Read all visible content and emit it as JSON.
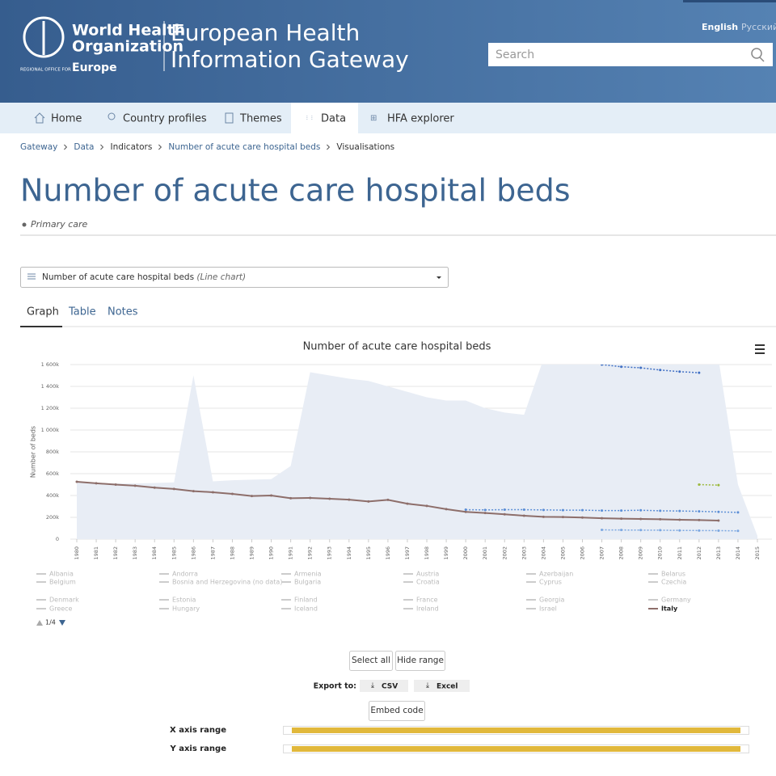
{
  "header": {
    "org_line1": "World Health",
    "org_line2": "Organization",
    "regional": "REGIONAL OFFICE FOR",
    "europe": "Europe",
    "gateway_line1": "European Health",
    "gateway_line2": "Information Gateway",
    "languages": [
      "English",
      "Русский"
    ],
    "search_placeholder": "Search"
  },
  "nav": [
    "Home",
    "Country profiles",
    "Themes",
    "Data",
    "HFA explorer"
  ],
  "breadcrumb": [
    "Gateway",
    "Data",
    "Indicators",
    "Number of acute care hospital beds",
    "Visualisations"
  ],
  "page": {
    "title": "Number of acute care hospital beds",
    "category": "Primary care",
    "selector": "Number of acute care hospital beds",
    "selector_type": "(Line chart)",
    "tabs": [
      "Graph",
      "Table",
      "Notes"
    ]
  },
  "chart_data": {
    "type": "line",
    "title": "Number of acute care hospital beds",
    "y_label": "Number of beds",
    "x": [
      1980,
      1981,
      1982,
      1983,
      1984,
      1985,
      1986,
      1987,
      1988,
      1989,
      1990,
      1991,
      1992,
      1993,
      1994,
      1995,
      1996,
      1997,
      1998,
      1999,
      2000,
      2001,
      2002,
      2003,
      2004,
      2005,
      2006,
      2007,
      2008,
      2009,
      2010,
      2011,
      2012,
      2013,
      2014,
      2015
    ],
    "xlim": [
      1980,
      2015
    ],
    "xticks": [
      1980,
      1981,
      1982,
      1983,
      1984,
      1985,
      1986,
      1987,
      1988,
      1989,
      1990,
      1991,
      1992,
      1993,
      1994,
      1995,
      1996,
      1997,
      1998,
      1999,
      2000,
      2001,
      2002,
      2003,
      2004,
      2005,
      2006,
      2007,
      2008,
      2009,
      2010,
      2011,
      2012,
      2013,
      2014,
      2015
    ],
    "ylim": [
      0,
      1600000
    ],
    "yticks": [
      0,
      {
        "value": 200000,
        "label": "200k"
      },
      {
        "value": 400000,
        "label": "400k"
      },
      {
        "value": 600000,
        "label": "600k"
      },
      {
        "value": 800000,
        "label": "800k"
      },
      {
        "value": 1000000,
        "label": "1 000k"
      },
      {
        "value": 1200000,
        "label": "1 200k"
      },
      {
        "value": 1400000,
        "label": "1 400k"
      },
      {
        "value": 1600000,
        "label": "1 600k"
      }
    ],
    "grid": true,
    "range": {
      "color": "#e8edf5",
      "values": [
        520000,
        515000,
        510000,
        510000,
        515000,
        520000,
        1500000,
        530000,
        540000,
        545000,
        550000,
        670000,
        1530000,
        1500000,
        1470000,
        1450000,
        1400000,
        1350000,
        1300000,
        1270000,
        1270000,
        1200000,
        1160000,
        1140000,
        1650000,
        1650000,
        1650000,
        1650000,
        1650000,
        1650000,
        1650000,
        1650000,
        1650000,
        1650000,
        500000,
        30000
      ]
    },
    "series": [
      {
        "name": "Italy",
        "color": "#8d6e6a",
        "values": [
          526000,
          512000,
          500000,
          490000,
          472000,
          460000,
          440000,
          430000,
          415000,
          395000,
          400000,
          375000,
          378000,
          370000,
          362000,
          345000,
          360000,
          325000,
          305000,
          275000,
          250000,
          240000,
          228000,
          215000,
          205000,
          203000,
          198000,
          192000,
          188000,
          185000,
          182000,
          178000,
          175000,
          170000,
          null,
          null
        ]
      },
      {
        "color": "#3f6fc4",
        "dashed": true,
        "values": [
          null,
          null,
          null,
          null,
          null,
          null,
          null,
          null,
          null,
          null,
          null,
          null,
          null,
          null,
          null,
          null,
          null,
          null,
          null,
          null,
          null,
          null,
          null,
          null,
          null,
          null,
          null,
          1600000,
          1580000,
          1570000,
          1550000,
          1535000,
          1525000,
          null,
          null,
          null
        ]
      },
      {
        "color": "#5b8ed6",
        "dashed": true,
        "values": [
          null,
          null,
          null,
          null,
          null,
          null,
          null,
          null,
          null,
          null,
          null,
          null,
          null,
          null,
          null,
          null,
          null,
          null,
          null,
          null,
          270000,
          268000,
          270000,
          270000,
          268000,
          266000,
          266000,
          262000,
          262000,
          265000,
          260000,
          258000,
          255000,
          250000,
          245000,
          null
        ]
      },
      {
        "color": "#7aa6e0",
        "dashed": true,
        "values": [
          null,
          null,
          null,
          null,
          null,
          null,
          null,
          null,
          null,
          null,
          null,
          null,
          null,
          null,
          null,
          null,
          null,
          null,
          null,
          null,
          null,
          null,
          null,
          null,
          null,
          null,
          null,
          85000,
          84000,
          83000,
          82000,
          80000,
          79000,
          78000,
          76000,
          null
        ]
      },
      {
        "color": "#9ab83a",
        "dashed": true,
        "values": [
          null,
          null,
          null,
          null,
          null,
          null,
          null,
          null,
          null,
          null,
          null,
          null,
          null,
          null,
          null,
          null,
          null,
          null,
          null,
          null,
          null,
          null,
          null,
          null,
          null,
          null,
          null,
          null,
          null,
          null,
          null,
          null,
          500000,
          495000,
          null,
          null
        ]
      }
    ],
    "legend_items": [
      "Albania",
      "Andorra",
      "Armenia",
      "Austria",
      "Azerbaijan",
      "Belarus",
      "Belgium",
      "Bosnia and Herzegovina (no data)",
      "Bulgaria",
      "Croatia",
      "Cyprus",
      "Czechia",
      "Denmark",
      "Estonia",
      "Finland",
      "France",
      "Georgia",
      "Germany",
      "Greece",
      "Hungary",
      "Iceland",
      "Ireland",
      "Israel",
      "Italy"
    ],
    "legend_page": "1/4"
  },
  "controls": {
    "select_all": "Select all",
    "hide_range": "Hide range",
    "export_label": "Export to:",
    "csv": "CSV",
    "excel": "Excel",
    "embed": "Embed code",
    "x_range": "X axis range",
    "y_range": "Y axis range"
  }
}
